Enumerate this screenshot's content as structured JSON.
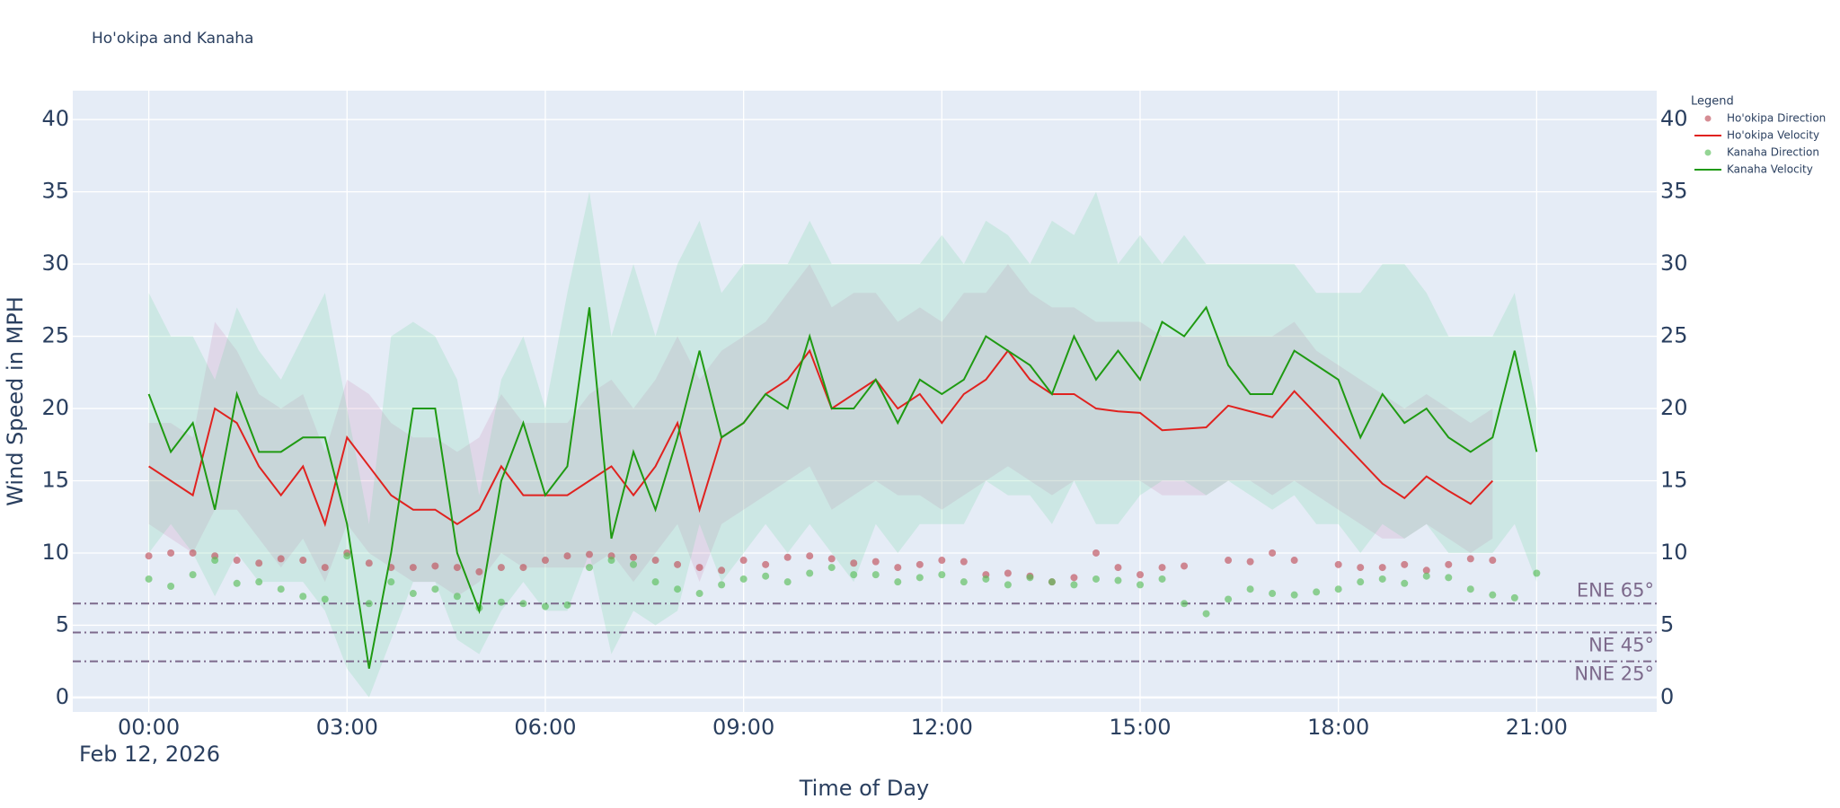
{
  "chart_data": {
    "type": "line",
    "title": "Ho'okipa and Kanaha",
    "x_label": "Time of Day",
    "y_label": "Wind Speed in MPH",
    "x_date_label": "Feb 12, 2026",
    "legend_title": "Legend",
    "legend": "right",
    "grid": true,
    "xlim": [
      "2026-02-11T22:51",
      "2026-02-12T22:49"
    ],
    "xticks": [
      {
        "value": "2026-02-12T00:00",
        "label": "00:00"
      },
      {
        "value": "2026-02-12T03:00",
        "label": "03:00"
      },
      {
        "value": "2026-02-12T06:00",
        "label": "06:00"
      },
      {
        "value": "2026-02-12T09:00",
        "label": "09:00"
      },
      {
        "value": "2026-02-12T12:00",
        "label": "12:00"
      },
      {
        "value": "2026-02-12T15:00",
        "label": "15:00"
      },
      {
        "value": "2026-02-12T18:00",
        "label": "18:00"
      },
      {
        "value": "2026-02-12T21:00",
        "label": "21:00"
      }
    ],
    "ylim": [
      -1,
      42
    ],
    "yticks": [
      0,
      5,
      10,
      15,
      20,
      25,
      30,
      35,
      40
    ],
    "x": [
      "2026-02-12T00:00",
      "2026-02-12T00:20",
      "2026-02-12T00:40",
      "2026-02-12T01:00",
      "2026-02-12T01:20",
      "2026-02-12T01:40",
      "2026-02-12T02:00",
      "2026-02-12T02:20",
      "2026-02-12T02:40",
      "2026-02-12T03:00",
      "2026-02-12T03:20",
      "2026-02-12T03:40",
      "2026-02-12T04:00",
      "2026-02-12T04:20",
      "2026-02-12T04:40",
      "2026-02-12T05:00",
      "2026-02-12T05:20",
      "2026-02-12T05:40",
      "2026-02-12T06:00",
      "2026-02-12T06:20",
      "2026-02-12T06:40",
      "2026-02-12T07:00",
      "2026-02-12T07:20",
      "2026-02-12T07:40",
      "2026-02-12T08:00",
      "2026-02-12T08:20",
      "2026-02-12T08:40",
      "2026-02-12T09:00",
      "2026-02-12T09:20",
      "2026-02-12T09:40",
      "2026-02-12T10:00",
      "2026-02-12T10:20",
      "2026-02-12T10:40",
      "2026-02-12T11:00",
      "2026-02-12T11:20",
      "2026-02-12T11:40",
      "2026-02-12T12:00",
      "2026-02-12T12:20",
      "2026-02-12T12:40",
      "2026-02-12T13:00",
      "2026-02-12T13:20",
      "2026-02-12T13:40",
      "2026-02-12T14:00",
      "2026-02-12T14:20",
      "2026-02-12T14:40",
      "2026-02-12T15:00",
      "2026-02-12T15:20",
      "2026-02-12T15:40",
      "2026-02-12T16:00",
      "2026-02-12T16:20",
      "2026-02-12T16:40",
      "2026-02-12T17:00",
      "2026-02-12T17:20",
      "2026-02-12T17:40",
      "2026-02-12T18:00",
      "2026-02-12T18:20",
      "2026-02-12T18:40",
      "2026-02-12T19:00",
      "2026-02-12T19:20",
      "2026-02-12T19:40",
      "2026-02-12T20:00",
      "2026-02-12T20:20",
      "2026-02-12T20:40",
      "2026-02-12T21:00"
    ],
    "series": [
      {
        "name": "Ho'okipa Direction",
        "mode": "markers",
        "color": "rgba(192,80,90,0.65)",
        "values": [
          9.8,
          10,
          10,
          9.8,
          9.5,
          9.3,
          9.6,
          9.5,
          9.0,
          10,
          9.3,
          9.0,
          9.0,
          9.1,
          9.0,
          8.7,
          9.0,
          9.0,
          9.5,
          9.8,
          9.9,
          9.8,
          9.7,
          9.5,
          9.2,
          9.0,
          8.8,
          9.5,
          9.2,
          9.7,
          9.8,
          9.6,
          9.3,
          9.4,
          9.0,
          9.2,
          9.5,
          9.4,
          8.5,
          8.6,
          8.4,
          8.0,
          8.3,
          10,
          9,
          8.5,
          9,
          9.1,
          null,
          9.5,
          9.4,
          10,
          9.5,
          null,
          9.2,
          9.0,
          9.0,
          9.2,
          8.8,
          9.2,
          9.6,
          9.5,
          null,
          null
        ]
      },
      {
        "name": "Ho'okipa Velocity",
        "mode": "lines",
        "color": "#e0221f",
        "band_color": "rgba(200,120,170,0.18)",
        "values": [
          16,
          15,
          14,
          20,
          19,
          16,
          14,
          16,
          12,
          18,
          16,
          14,
          13,
          13,
          12,
          13,
          16,
          14,
          14,
          14,
          15,
          16,
          14,
          16,
          19,
          13,
          18,
          19,
          21,
          22,
          24,
          20,
          21,
          22,
          20,
          21,
          19,
          21,
          22,
          24,
          22,
          21,
          21,
          20,
          19.8,
          19.7,
          18.5,
          18.6,
          18.7,
          20.2,
          19.8,
          19.4,
          21.2,
          19.6,
          18,
          16.4,
          14.8,
          13.8,
          15.3,
          14.3,
          13.4,
          15,
          null,
          null
        ],
        "band_high": [
          19,
          19,
          18,
          26,
          24,
          21,
          20,
          21,
          17,
          22,
          21,
          19,
          18,
          18,
          17,
          18,
          21,
          19,
          19,
          19,
          21,
          22,
          20,
          22,
          25,
          22,
          24,
          25,
          26,
          28,
          30,
          27,
          28,
          28,
          26,
          27,
          26,
          28,
          28,
          30,
          28,
          27,
          27,
          26,
          26,
          26,
          25,
          25,
          25,
          25,
          25,
          25,
          26,
          24,
          23,
          22,
          21,
          20,
          21,
          20,
          19,
          20,
          null,
          null
        ],
        "band_low": [
          12,
          11,
          10,
          13,
          13,
          11,
          9,
          11,
          8,
          12,
          10,
          9,
          8,
          8,
          7,
          8,
          10,
          9,
          9,
          9,
          9,
          10,
          8,
          10,
          12,
          8,
          12,
          13,
          14,
          15,
          16,
          13,
          14,
          15,
          14,
          14,
          13,
          14,
          15,
          16,
          15,
          14,
          15,
          15,
          15,
          15,
          14,
          14,
          14,
          15,
          15,
          14,
          15,
          14,
          13,
          12,
          11,
          11,
          12,
          11,
          10,
          11,
          null,
          null
        ]
      },
      {
        "name": "Kanaha Direction",
        "mode": "markers",
        "color": "rgba(90,190,90,0.65)",
        "values": [
          8.2,
          7.7,
          8.5,
          9.5,
          7.9,
          8.0,
          7.5,
          7.0,
          6.8,
          9.8,
          6.5,
          8.0,
          7.2,
          7.5,
          7.0,
          6.2,
          6.6,
          6.5,
          6.3,
          6.4,
          9.0,
          9.5,
          9.2,
          8.0,
          7.5,
          7.2,
          7.8,
          8.2,
          8.4,
          8.0,
          8.6,
          9.0,
          8.5,
          8.5,
          8.0,
          8.3,
          8.5,
          8.0,
          8.2,
          7.8,
          8.3,
          8.0,
          7.8,
          8.2,
          8.1,
          7.8,
          8.2,
          6.5,
          5.8,
          6.8,
          7.5,
          7.2,
          7.1,
          7.3,
          7.5,
          8.0,
          8.2,
          7.9,
          8.4,
          8.3,
          7.5,
          7.1,
          6.9,
          8.6
        ]
      },
      {
        "name": "Kanaha Velocity",
        "mode": "lines",
        "color": "#1f9a12",
        "band_color": "rgba(120,215,165,0.22)",
        "values": [
          21,
          17,
          19,
          13,
          21,
          17,
          17,
          18,
          18,
          12,
          2,
          10,
          20,
          20,
          10,
          6,
          15,
          19,
          14,
          16,
          27,
          11,
          17,
          13,
          18,
          24,
          18,
          19,
          21,
          20,
          25,
          20,
          20,
          22,
          19,
          22,
          21,
          22,
          25,
          24,
          23,
          21,
          25,
          22,
          24,
          22,
          26,
          25,
          27,
          23,
          21,
          21,
          24,
          23,
          22,
          18,
          21,
          19,
          20,
          18,
          17,
          18,
          24,
          17
        ],
        "band_high": [
          28,
          25,
          25,
          22,
          27,
          24,
          22,
          25,
          28,
          20,
          12,
          25,
          26,
          25,
          22,
          14,
          22,
          25,
          20,
          28,
          35,
          25,
          30,
          25,
          30,
          33,
          28,
          30,
          30,
          30,
          33,
          30,
          30,
          30,
          30,
          30,
          32,
          30,
          33,
          32,
          30,
          33,
          32,
          35,
          30,
          32,
          30,
          32,
          30,
          30,
          30,
          30,
          30,
          28,
          28,
          28,
          30,
          30,
          28,
          25,
          25,
          25,
          28,
          20
        ],
        "band_low": [
          10,
          12,
          10,
          7,
          10,
          8,
          8,
          8,
          6,
          2,
          0,
          4,
          8,
          8,
          4,
          3,
          6,
          8,
          6,
          6,
          10,
          3,
          6,
          5,
          6,
          12,
          8,
          10,
          12,
          10,
          12,
          10,
          8,
          12,
          10,
          12,
          12,
          12,
          15,
          14,
          14,
          12,
          15,
          12,
          12,
          14,
          15,
          15,
          14,
          15,
          14,
          13,
          14,
          12,
          12,
          10,
          12,
          11,
          12,
          10,
          10,
          10,
          12,
          8
        ]
      }
    ],
    "reference_lines": [
      {
        "value": 6.5,
        "label": "ENE 65°",
        "label_side": "above"
      },
      {
        "value": 4.5,
        "label": "NE 45°",
        "label_side": "below"
      },
      {
        "value": 2.5,
        "label": "NNE 25°",
        "label_side": "below"
      }
    ],
    "reference_color": "#7d6a8c"
  }
}
